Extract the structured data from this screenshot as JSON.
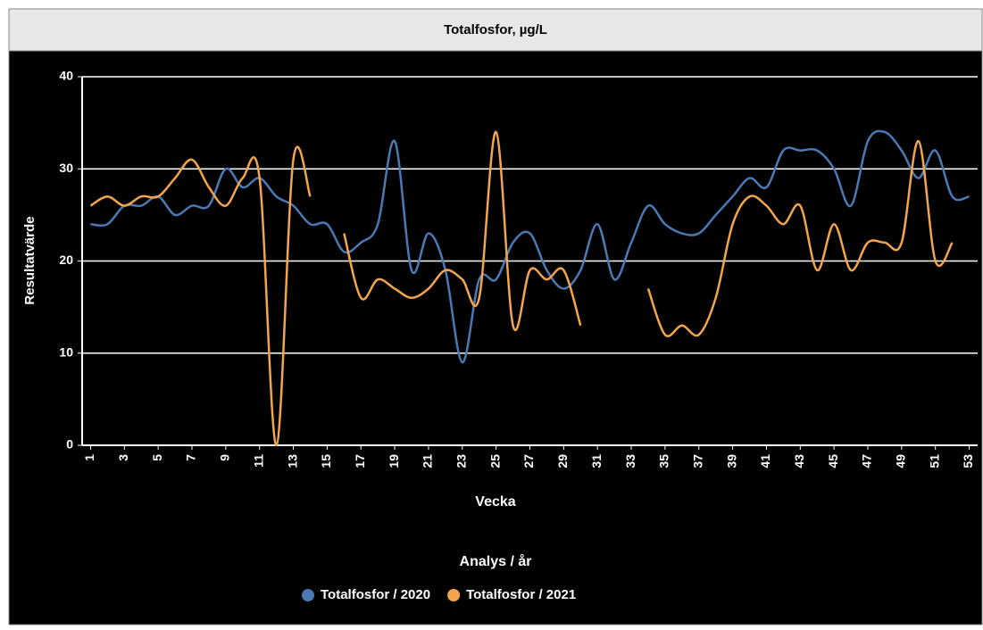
{
  "chart_data": {
    "type": "line",
    "title": "Totalfosfor, µg/L",
    "xlabel": "Vecka",
    "ylabel": "Resultatvärde",
    "legend_title": "Analys / år",
    "x": [
      1,
      2,
      3,
      4,
      5,
      6,
      7,
      8,
      9,
      10,
      11,
      12,
      13,
      14,
      15,
      16,
      17,
      18,
      19,
      20,
      21,
      22,
      23,
      24,
      25,
      26,
      27,
      28,
      29,
      30,
      31,
      32,
      33,
      34,
      35,
      36,
      37,
      38,
      39,
      40,
      41,
      42,
      43,
      44,
      45,
      46,
      47,
      48,
      49,
      50,
      51,
      52,
      53
    ],
    "xlim": [
      0.5,
      53.5
    ],
    "xticks": [
      1,
      3,
      5,
      7,
      9,
      11,
      13,
      15,
      17,
      19,
      21,
      23,
      25,
      27,
      29,
      31,
      33,
      35,
      37,
      39,
      41,
      43,
      45,
      47,
      49,
      51,
      53
    ],
    "ylim": [
      0,
      40
    ],
    "yticks": [
      0,
      10,
      20,
      30,
      40
    ],
    "grid": true,
    "legend": "bottom",
    "series": [
      {
        "name": "Totalfosfor / 2020",
        "color": "#4a79b4",
        "values": [
          24,
          24,
          26,
          26,
          27,
          25,
          26,
          26,
          30,
          28,
          29,
          27,
          26,
          24,
          24,
          21,
          22,
          24,
          33,
          19,
          23,
          19,
          9,
          18,
          18,
          22,
          23,
          19,
          17,
          19,
          24,
          18,
          22,
          26,
          24,
          23,
          23,
          25,
          27,
          29,
          28,
          32,
          32,
          32,
          30,
          26,
          33,
          34,
          32,
          29,
          32,
          27,
          27
        ]
      },
      {
        "name": "Totalfosfor / 2021",
        "color": "#f2a54c",
        "values": [
          26,
          27,
          26,
          27,
          27,
          29,
          31,
          28,
          26,
          29,
          29,
          0,
          31,
          27,
          null,
          23,
          16,
          18,
          17,
          16,
          17,
          19,
          18,
          16,
          34,
          13,
          19,
          18,
          19,
          13,
          null,
          null,
          null,
          17,
          12,
          13,
          12,
          16,
          24,
          27,
          26,
          24,
          26,
          19,
          24,
          19,
          22,
          22,
          22,
          33,
          20,
          22,
          null
        ]
      }
    ]
  }
}
